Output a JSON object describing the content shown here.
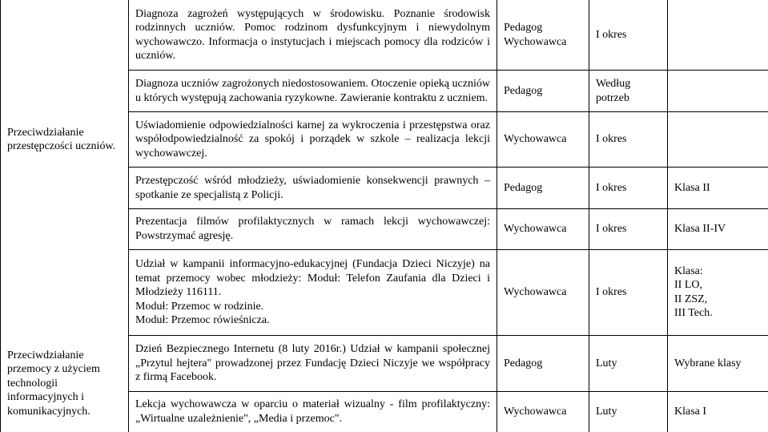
{
  "col1": {
    "label_a": "Przeciwdziałanie przestępczości uczniów.",
    "label_b": "Przeciwdziałanie przemocy z użyciem technologii informacyjnych i komunikacyjnych."
  },
  "rows": [
    {
      "desc": "Diagnoza zagrożeń występujących w środowisku. Poznanie środowisk rodzinnych uczniów. Pomoc rodzinom dysfunkcyjnym i niewydolnym wychowawczo. Informacja o instytucjach i miejscach pomocy dla rodziców i uczniów.",
      "who": "Pedagog\nWychowawca",
      "when": "I okres",
      "extra": ""
    },
    {
      "desc": "Diagnoza uczniów zagrożonych niedostosowaniem. Otoczenie opieką uczniów u których występują zachowania ryzykowne. Zawieranie kontraktu z uczniem.",
      "who": "Pedagog",
      "when": "Według potrzeb",
      "extra": ""
    },
    {
      "desc": "Uświadomienie odpowiedzialności karnej za wykroczenia i przestępstwa oraz współodpowiedzialność za spokój i porządek w szkole – realizacja lekcji wychowawczej.",
      "who": "Wychowawca",
      "when": "I okres",
      "extra": ""
    },
    {
      "desc": "Przestępczość wśród młodzieży, uświadomienie konsekwencji prawnych –spotkanie ze specjalistą z Policji.",
      "who": "Pedagog",
      "when": "I okres",
      "extra": "Klasa II"
    },
    {
      "desc": "Prezentacja filmów profilaktycznych w ramach lekcji wychowawczej: Powstrzymać agresję.",
      "who": "Wychowawca",
      "when": "I okres",
      "extra": "Klasa II-IV"
    },
    {
      "desc": "Udział w kampanii informacyjno-edukacyjnej (Fundacja Dzieci Niczyje) na temat przemocy wobec młodzieży: Moduł: Telefon Zaufania dla Dzieci i Młodzieży 116111.\nModuł: Przemoc w rodzinie.\nModuł: Przemoc rówieśnicza.",
      "who": "Wychowawca",
      "when": "I okres",
      "extra": "Klasa:\nII LO,\nII ZSZ,\nIII Tech."
    },
    {
      "desc": "Dzień Bezpiecznego Internetu (8 luty 2016r.) Udział w kampanii społecznej „Przytul hejtera\" prowadzonej przez Fundację Dzieci Niczyje we współpracy z firmą Facebook.",
      "who": "Pedagog",
      "when": "Luty",
      "extra": "Wybrane klasy"
    },
    {
      "desc": "Lekcja wychowawcza w oparciu o materiał wizualny - film profilaktyczny: „Wirtualne uzależnienie\", „Media i przemoc\".",
      "who": "Wychowawca",
      "when": "Luty",
      "extra": "Klasa I"
    }
  ]
}
